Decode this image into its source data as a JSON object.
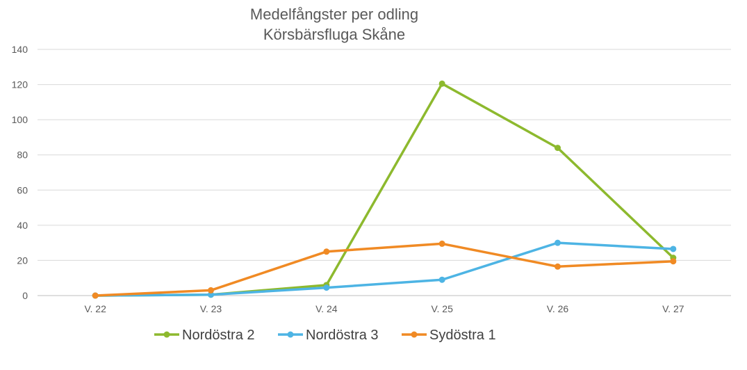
{
  "chart_data": {
    "type": "line",
    "title_lines": [
      "Medelfångster per odling",
      "Körsbärsfluga Skåne"
    ],
    "categories": [
      "V. 22",
      "V. 23",
      "V. 24",
      "V. 25",
      "V. 26",
      "V. 27"
    ],
    "ylim": [
      0,
      140
    ],
    "yticks": [
      "0",
      "20",
      "40",
      "60",
      "80",
      "100",
      "120",
      "140"
    ],
    "grid": true,
    "legend_position": "bottom",
    "series": [
      {
        "name": "Nordöstra 2",
        "color": "#8DB92E",
        "values": [
          0,
          0.5,
          6,
          120.5,
          84,
          21.5
        ]
      },
      {
        "name": "Nordöstra 3",
        "color": "#4DB4E4",
        "values": [
          0,
          0.5,
          4.5,
          9,
          30,
          26.5
        ]
      },
      {
        "name": "Sydöstra 1",
        "color": "#F08A24",
        "values": [
          0,
          3,
          25,
          29.5,
          16.5,
          19.5
        ]
      }
    ]
  }
}
